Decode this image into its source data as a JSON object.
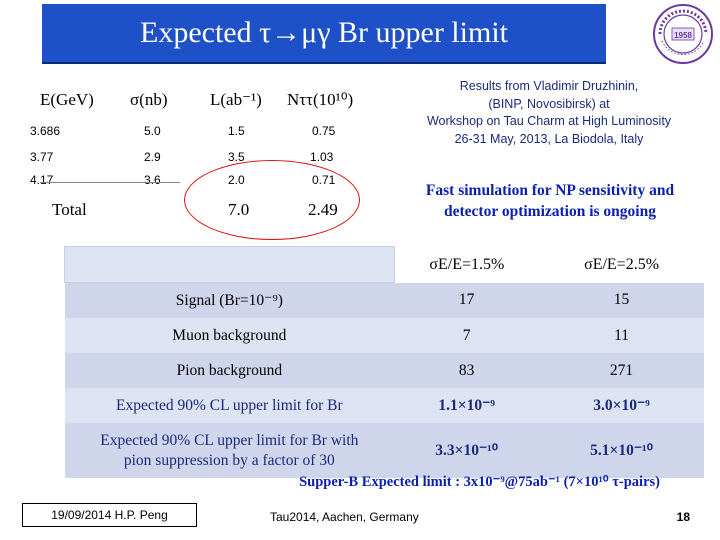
{
  "title": "Expected τ→μγ Br upper limit",
  "logo_text": "1958",
  "left_table": {
    "headers": [
      "E(GeV)",
      "σ(nb)",
      "L(ab⁻¹)",
      "Nττ(10¹⁰)"
    ],
    "rows": [
      [
        "3.686",
        "5.0",
        "1.5",
        "0.75"
      ],
      [
        "3.77",
        "2.9",
        "3.5",
        "1.03"
      ],
      [
        "4.17",
        "3.6",
        "2.0",
        "0.71"
      ]
    ],
    "total_label": "Total",
    "total_L": "7.0",
    "total_N": "2.49"
  },
  "results_note": {
    "line1": "Results from Vladimir Druzhinin,",
    "line2": "(BINP, Novosibirsk) at",
    "line3": "Workshop on Tau Charm at High Luminosity",
    "line4": "26-31 May, 2013,  La Biodola, Italy"
  },
  "fast_sim": {
    "line1": "Fast simulation for NP sensitivity and",
    "line2": "detector optimization is ongoing"
  },
  "main_table": {
    "col1": "σE/E=1.5%",
    "col2": "σE/E=2.5%",
    "rows": [
      {
        "label": "Signal (Br=10⁻⁹)",
        "v1": "17",
        "v2": "15"
      },
      {
        "label": "Muon background",
        "v1": "7",
        "v2": "11"
      },
      {
        "label": "Pion background",
        "v1": "83",
        "v2": "271"
      },
      {
        "label": "Expected 90% CL upper limit for Br",
        "v1": "1.1×10⁻⁹",
        "v2": "3.0×10⁻⁹"
      }
    ],
    "last_row": {
      "label_line1": "Expected 90% CL upper limit for Br with",
      "label_line2": "pion suppression by a factor of 30",
      "v1": "3.3×10⁻¹⁰",
      "v2": "5.1×10⁻¹⁰"
    }
  },
  "supper_b": "Supper-B Expected  limit : 3x10⁻⁹@75ab⁻¹  (7×10¹⁰ τ-pairs)",
  "footer": {
    "date_author": "19/09/2014 H.P. Peng",
    "conference": "Tau2014,   Aachen,   Germany",
    "page": "18"
  }
}
